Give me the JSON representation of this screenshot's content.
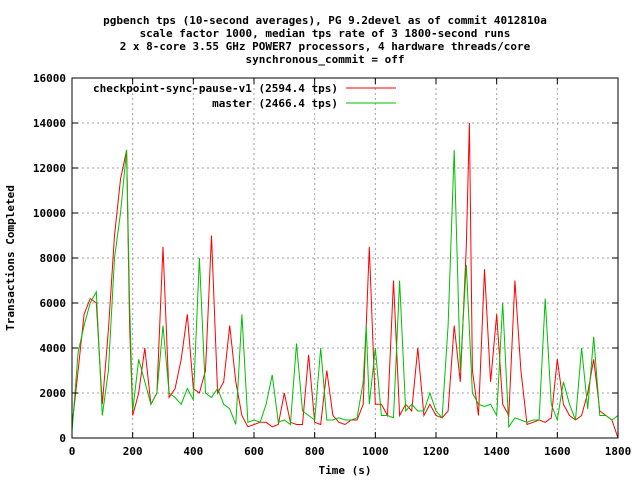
{
  "chart_data": {
    "type": "line",
    "title_lines": [
      "pgbench tps (10-second averages), PG 9.2devel as of commit 4012810a",
      "scale factor 1000, median tps rate of 3 1800-second runs",
      "2 x 8-core 3.55 GHz POWER7 processors, 4 hardware threads/core",
      "synchronous_commit = off"
    ],
    "xlabel": "Time (s)",
    "ylabel": "Transactions Completed",
    "xlim": [
      0,
      1800
    ],
    "ylim": [
      0,
      16000
    ],
    "xticks": [
      0,
      200,
      400,
      600,
      800,
      1000,
      1200,
      1400,
      1600,
      1800
    ],
    "yticks": [
      0,
      2000,
      4000,
      6000,
      8000,
      10000,
      12000,
      14000,
      16000
    ],
    "grid": true,
    "legend_position": "top-left",
    "series": [
      {
        "name": "checkpoint-sync-pause-v1 (2594.4 tps)",
        "color": "#ff0000",
        "x": [
          0,
          20,
          40,
          60,
          80,
          100,
          120,
          140,
          160,
          180,
          190,
          200,
          220,
          240,
          260,
          280,
          300,
          320,
          340,
          360,
          380,
          400,
          420,
          440,
          460,
          480,
          500,
          520,
          540,
          560,
          580,
          600,
          620,
          640,
          660,
          680,
          700,
          720,
          740,
          760,
          780,
          800,
          820,
          840,
          860,
          880,
          900,
          920,
          940,
          960,
          980,
          1000,
          1020,
          1040,
          1060,
          1080,
          1100,
          1120,
          1140,
          1160,
          1180,
          1200,
          1220,
          1240,
          1260,
          1280,
          1300,
          1310,
          1320,
          1340,
          1360,
          1380,
          1400,
          1420,
          1440,
          1460,
          1480,
          1500,
          1520,
          1540,
          1560,
          1580,
          1600,
          1620,
          1640,
          1660,
          1680,
          1700,
          1720,
          1740,
          1760,
          1780,
          1800
        ],
        "y": [
          500,
          3000,
          5500,
          6200,
          6000,
          1500,
          4800,
          9000,
          11500,
          12800,
          5000,
          1000,
          2000,
          4000,
          1500,
          2000,
          8500,
          1800,
          2200,
          3500,
          5500,
          2200,
          2000,
          3000,
          9000,
          2000,
          2500,
          5000,
          2500,
          1000,
          500,
          600,
          700,
          700,
          500,
          600,
          2000,
          700,
          600,
          600,
          3700,
          700,
          600,
          3000,
          1000,
          700,
          600,
          800,
          800,
          1500,
          8500,
          1500,
          1500,
          1000,
          7000,
          1000,
          1500,
          1200,
          4000,
          1000,
          1500,
          1000,
          900,
          1200,
          5000,
          2500,
          8500,
          14000,
          3000,
          1000,
          7500,
          2500,
          5500,
          1500,
          1000,
          7000,
          3000,
          600,
          700,
          800,
          700,
          900,
          3500,
          1500,
          1000,
          800,
          1000,
          2000,
          3500,
          1200,
          1000,
          800,
          0
        ]
      },
      {
        "name": "master (2466.4 tps)",
        "color": "#00c000",
        "x": [
          0,
          20,
          40,
          60,
          80,
          100,
          120,
          140,
          160,
          180,
          190,
          200,
          220,
          240,
          260,
          280,
          300,
          320,
          340,
          360,
          380,
          400,
          420,
          440,
          460,
          480,
          500,
          520,
          540,
          560,
          580,
          600,
          620,
          640,
          660,
          680,
          700,
          720,
          740,
          760,
          780,
          800,
          820,
          840,
          860,
          880,
          900,
          920,
          940,
          960,
          970,
          980,
          1000,
          1020,
          1040,
          1060,
          1080,
          1100,
          1120,
          1140,
          1160,
          1180,
          1200,
          1220,
          1240,
          1260,
          1280,
          1300,
          1320,
          1340,
          1360,
          1380,
          1400,
          1420,
          1440,
          1460,
          1480,
          1500,
          1520,
          1540,
          1560,
          1580,
          1600,
          1620,
          1640,
          1660,
          1680,
          1700,
          1720,
          1740,
          1760,
          1780,
          1800
        ],
        "y": [
          300,
          3800,
          5000,
          6000,
          6500,
          1000,
          3000,
          8000,
          10000,
          12800,
          6000,
          1200,
          3500,
          2500,
          1500,
          2000,
          5000,
          2000,
          1800,
          1500,
          2200,
          1700,
          8000,
          2000,
          1800,
          2200,
          1500,
          1300,
          600,
          5500,
          700,
          800,
          700,
          1500,
          2800,
          700,
          800,
          600,
          4200,
          1200,
          1000,
          800,
          4000,
          800,
          800,
          900,
          800,
          800,
          900,
          2500,
          5000,
          1500,
          4000,
          1000,
          1000,
          900,
          7000,
          1200,
          1500,
          1200,
          1200,
          2000,
          1200,
          900,
          5000,
          12800,
          3000,
          7700,
          2000,
          1500,
          1400,
          1500,
          1000,
          6000,
          500,
          900,
          800,
          700,
          800,
          800,
          6200,
          1500,
          800,
          2500,
          1500,
          800,
          4000,
          1300,
          4500,
          1000,
          1000,
          800,
          1000
        ]
      }
    ]
  }
}
